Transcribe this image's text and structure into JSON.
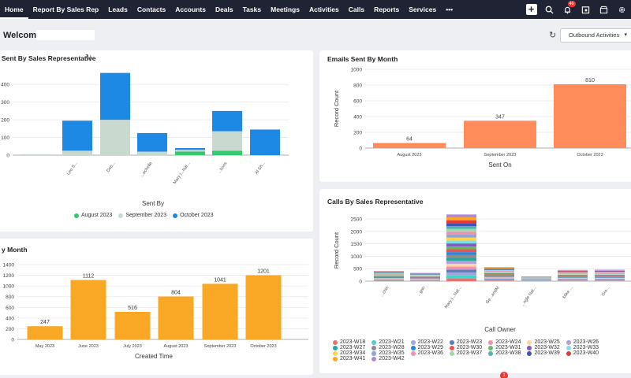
{
  "nav": {
    "items": [
      "Home",
      "Report By Sales Rep",
      "Leads",
      "Contacts",
      "Accounts",
      "Deals",
      "Tasks",
      "Meetings",
      "Activities",
      "Calls",
      "Reports",
      "Services",
      "•••"
    ],
    "notification_count": "46"
  },
  "header": {
    "welcome": "Welcome",
    "dropdown_value": "Outbound Activities"
  },
  "cards": {
    "sent_by_rep_title": "Sent By Sales Representative",
    "emails_by_month_title": "Emails Sent By Month",
    "by_month_title": "y Month",
    "calls_by_rep_title": "Calls By Sales Representative"
  },
  "bottom_badge": "1",
  "chart_data": [
    {
      "type": "bar",
      "stacked": true,
      "title": "Sent By Sales Representative",
      "xlabel": "Sent By",
      "ylabel": "",
      "ylim": [
        0,
        450
      ],
      "y_ticks": [
        0,
        100,
        200,
        300,
        400
      ],
      "y_tick_labels": [
        "0",
        "100",
        "200",
        "300",
        "400"
      ],
      "categories": [
        "",
        "Leo S...",
        "Deb...",
        "...achelle",
        "Mary I...Nat...",
        "...bons",
        "Al Sh..."
      ],
      "series": [
        {
          "name": "August 2023",
          "color": "#36c86f",
          "values": [
            0,
            0,
            0,
            0,
            20,
            25,
            0
          ]
        },
        {
          "name": "September 2023",
          "color": "#c9d9cf",
          "values": [
            5,
            25,
            200,
            20,
            10,
            110,
            0
          ]
        },
        {
          "name": "October 2023",
          "color": "#1e88e5",
          "values": [
            0,
            170,
            265,
            105,
            10,
            115,
            145
          ]
        }
      ],
      "legend_position": "bottom"
    },
    {
      "type": "bar",
      "title": "Emails Sent By Month",
      "xlabel": "Sent On",
      "ylabel": "Record Count",
      "ylim": [
        0,
        1000
      ],
      "y_ticks": [
        0,
        200,
        400,
        600,
        800,
        1000
      ],
      "y_tick_labels": [
        "0",
        "200",
        "400",
        "600",
        "800",
        "1000"
      ],
      "categories": [
        "August 2023",
        "September 2023",
        "October 2023"
      ],
      "values": [
        64,
        347,
        810
      ],
      "value_labels": [
        "64",
        "347",
        "810"
      ],
      "color": "#ff8c5a"
    },
    {
      "type": "bar",
      "title": "y Month",
      "xlabel": "Created Time",
      "ylabel": "",
      "ylim": [
        0,
        1400
      ],
      "y_ticks": [
        0,
        200,
        400,
        600,
        800,
        1000,
        1200,
        1400
      ],
      "y_tick_labels": [
        "0",
        "200",
        "400",
        "600",
        "800",
        "1000",
        "1200",
        "1400"
      ],
      "categories": [
        "May 2023",
        "June 2023",
        "July 2023",
        "August 2023",
        "September 2023",
        "October 2023"
      ],
      "values": [
        247,
        1112,
        516,
        804,
        1041,
        1201
      ],
      "value_labels": [
        "247",
        "1112",
        "516",
        "804",
        "1041",
        "1201"
      ],
      "color": "#f9a825"
    },
    {
      "type": "bar",
      "stacked": true,
      "title": "Calls By Sales Representative",
      "xlabel": "Call Owner",
      "ylabel": "Record Count",
      "ylim": [
        0,
        2500
      ],
      "y_ticks": [
        0,
        500,
        1000,
        1500,
        2000,
        2500
      ],
      "y_tick_labels": [
        "0",
        "500",
        "1000",
        "1500",
        "2000",
        "2500"
      ],
      "categories": [
        "...chin",
        "...gan",
        "Mary I...Nat...",
        "Ge...andM",
        "...ngle Nat...",
        "Mike ...",
        "Gre...",
        "...lay"
      ],
      "totals": [
        410,
        330,
        2680,
        560,
        190,
        450,
        460,
        370
      ],
      "series": [
        {
          "name": "2023-W18",
          "color": "#e57373"
        },
        {
          "name": "2023-W21",
          "color": "#4dd0c8"
        },
        {
          "name": "2023-W22",
          "color": "#9fa8da"
        },
        {
          "name": "2023-W23",
          "color": "#5c7cc2"
        },
        {
          "name": "2023-W24",
          "color": "#f48fb1"
        },
        {
          "name": "2023-W25",
          "color": "#fdd49e"
        },
        {
          "name": "2023-W26",
          "color": "#b39ddb"
        },
        {
          "name": "2023-W27",
          "color": "#26a69a"
        },
        {
          "name": "2023-W28",
          "color": "#8d8d8d"
        },
        {
          "name": "2023-W29",
          "color": "#1e88e5"
        },
        {
          "name": "2023-W30",
          "color": "#ef5350"
        },
        {
          "name": "2023-W31",
          "color": "#66bb6a"
        },
        {
          "name": "2023-W32",
          "color": "#7e57c2"
        },
        {
          "name": "2023-W33",
          "color": "#80deea"
        },
        {
          "name": "2023-W34",
          "color": "#ffd54f"
        },
        {
          "name": "2023-W35",
          "color": "#90a4d4"
        },
        {
          "name": "2023-W36",
          "color": "#f48fb1"
        },
        {
          "name": "2023-W37",
          "color": "#a5d6a7"
        },
        {
          "name": "2023-W38",
          "color": "#4db6ac"
        },
        {
          "name": "2023-W39",
          "color": "#3f51b5"
        },
        {
          "name": "2023-W40",
          "color": "#e53935"
        },
        {
          "name": "2023-W41",
          "color": "#f9a825"
        },
        {
          "name": "2023-W42",
          "color": "#b388d9"
        }
      ],
      "legend_position": "bottom"
    }
  ]
}
